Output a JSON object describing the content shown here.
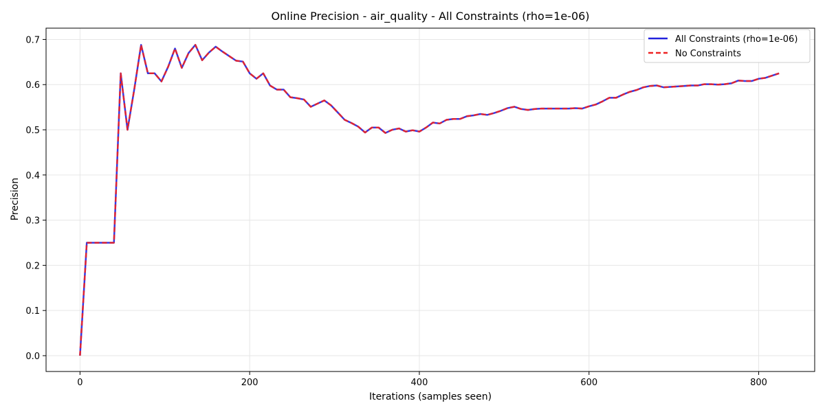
{
  "chart_data": {
    "type": "line",
    "title": "Online Precision - air_quality - All Constraints (rho=1e-06)",
    "xlabel": "Iterations (samples seen)",
    "ylabel": "Precision",
    "xlim": [
      -40,
      866
    ],
    "ylim": [
      -0.035,
      0.725
    ],
    "xticks": [
      0,
      200,
      400,
      600,
      800
    ],
    "yticks": [
      0.0,
      0.1,
      0.2,
      0.3,
      0.4,
      0.5,
      0.6,
      0.7
    ],
    "ytick_labels": [
      "0.0",
      "0.1",
      "0.2",
      "0.3",
      "0.4",
      "0.5",
      "0.6",
      "0.7"
    ],
    "grid": true,
    "legend_position": "top-right",
    "x": [
      0,
      8,
      16,
      24,
      32,
      40,
      48,
      56,
      64,
      72,
      80,
      88,
      96,
      104,
      112,
      120,
      128,
      136,
      144,
      152,
      160,
      168,
      176,
      184,
      192,
      200,
      208,
      216,
      224,
      232,
      240,
      248,
      256,
      264,
      272,
      280,
      288,
      296,
      304,
      312,
      320,
      328,
      336,
      344,
      352,
      360,
      368,
      376,
      384,
      392,
      400,
      408,
      416,
      424,
      432,
      440,
      448,
      456,
      464,
      472,
      480,
      488,
      496,
      504,
      512,
      520,
      528,
      536,
      544,
      552,
      560,
      568,
      576,
      584,
      592,
      600,
      608,
      616,
      624,
      632,
      640,
      648,
      656,
      664,
      672,
      680,
      688,
      696,
      704,
      712,
      720,
      728,
      736,
      744,
      752,
      760,
      768,
      776,
      784,
      792,
      800,
      808,
      816,
      824
    ],
    "series": [
      {
        "name": "All Constraints (rho=1e-06)",
        "color": "#2222dd",
        "style": "solid",
        "values": [
          0.0,
          0.25,
          0.25,
          0.25,
          0.25,
          0.25,
          0.625,
          0.5,
          0.59,
          0.688,
          0.625,
          0.625,
          0.607,
          0.64,
          0.68,
          0.637,
          0.67,
          0.688,
          0.654,
          0.671,
          0.684,
          0.673,
          0.663,
          0.653,
          0.651,
          0.625,
          0.613,
          0.625,
          0.598,
          0.589,
          0.589,
          0.572,
          0.57,
          0.567,
          0.551,
          0.558,
          0.565,
          0.554,
          0.538,
          0.522,
          0.515,
          0.507,
          0.494,
          0.505,
          0.505,
          0.493,
          0.5,
          0.503,
          0.496,
          0.499,
          0.496,
          0.505,
          0.516,
          0.514,
          0.522,
          0.524,
          0.524,
          0.53,
          0.532,
          0.535,
          0.533,
          0.537,
          0.542,
          0.548,
          0.551,
          0.546,
          0.544,
          0.546,
          0.547,
          0.547,
          0.547,
          0.547,
          0.547,
          0.548,
          0.547,
          0.552,
          0.556,
          0.563,
          0.571,
          0.571,
          0.578,
          0.584,
          0.588,
          0.594,
          0.597,
          0.598,
          0.594,
          0.595,
          0.596,
          0.597,
          0.598,
          0.598,
          0.601,
          0.601,
          0.6,
          0.601,
          0.603,
          0.609,
          0.608,
          0.608,
          0.613,
          0.615,
          0.62,
          0.625
        ]
      },
      {
        "name": "No Constraints",
        "color": "#ee2222",
        "style": "dashed",
        "values": [
          0.0,
          0.25,
          0.25,
          0.25,
          0.25,
          0.25,
          0.625,
          0.5,
          0.59,
          0.688,
          0.625,
          0.625,
          0.607,
          0.64,
          0.68,
          0.637,
          0.67,
          0.688,
          0.654,
          0.671,
          0.684,
          0.673,
          0.663,
          0.653,
          0.651,
          0.625,
          0.613,
          0.625,
          0.598,
          0.589,
          0.589,
          0.572,
          0.57,
          0.567,
          0.551,
          0.558,
          0.565,
          0.554,
          0.538,
          0.522,
          0.515,
          0.507,
          0.494,
          0.505,
          0.505,
          0.493,
          0.5,
          0.503,
          0.496,
          0.499,
          0.496,
          0.505,
          0.516,
          0.514,
          0.522,
          0.524,
          0.524,
          0.53,
          0.532,
          0.535,
          0.533,
          0.537,
          0.542,
          0.548,
          0.551,
          0.546,
          0.544,
          0.546,
          0.547,
          0.547,
          0.547,
          0.547,
          0.547,
          0.548,
          0.547,
          0.552,
          0.556,
          0.563,
          0.571,
          0.571,
          0.578,
          0.584,
          0.588,
          0.594,
          0.597,
          0.598,
          0.594,
          0.595,
          0.596,
          0.597,
          0.598,
          0.598,
          0.601,
          0.601,
          0.6,
          0.601,
          0.603,
          0.609,
          0.608,
          0.608,
          0.613,
          0.615,
          0.62,
          0.625
        ]
      }
    ]
  }
}
